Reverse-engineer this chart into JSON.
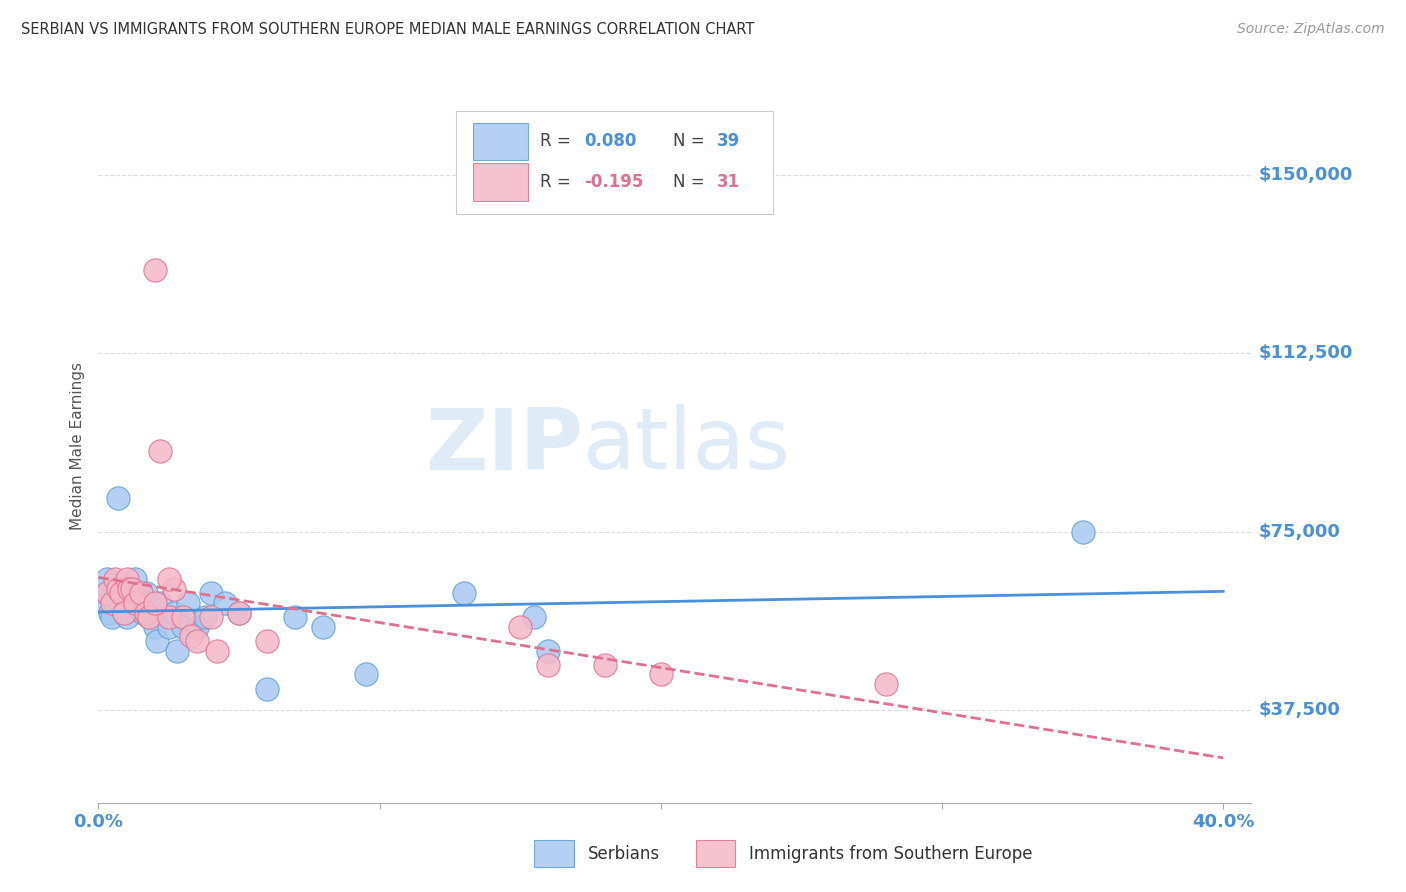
{
  "title": "SERBIAN VS IMMIGRANTS FROM SOUTHERN EUROPE MEDIAN MALE EARNINGS CORRELATION CHART",
  "source": "Source: ZipAtlas.com",
  "ylabel": "Median Male Earnings",
  "watermark_zip": "ZIP",
  "watermark_atlas": "atlas",
  "blue_color": "#a8c8f0",
  "blue_edge_color": "#5a9fd4",
  "pink_color": "#f5b8c8",
  "pink_edge_color": "#e07090",
  "blue_line_color": "#4a90d9",
  "pink_line_color": "#e07090",
  "axis_label_color": "#4a90d9",
  "title_color": "#333333",
  "source_color": "#999999",
  "grid_color": "#dddddd",
  "ylabel_color": "#555555",
  "background_color": "#ffffff",
  "serb_x": [
    0.002,
    0.003,
    0.004,
    0.005,
    0.006,
    0.007,
    0.008,
    0.009,
    0.01,
    0.011,
    0.012,
    0.013,
    0.014,
    0.015,
    0.016,
    0.017,
    0.018,
    0.02,
    0.021,
    0.022,
    0.025,
    0.027,
    0.028,
    0.03,
    0.032,
    0.035,
    0.038,
    0.04,
    0.045,
    0.05,
    0.06,
    0.07,
    0.08,
    0.095,
    0.13,
    0.155,
    0.16,
    0.35,
    0.003
  ],
  "serb_y": [
    60000,
    62000,
    58000,
    57000,
    60000,
    82000,
    60000,
    58000,
    57000,
    62000,
    60000,
    65000,
    62000,
    60000,
    58000,
    62000,
    57000,
    55000,
    52000,
    60000,
    55000,
    58000,
    50000,
    55000,
    60000,
    55000,
    57000,
    62000,
    60000,
    58000,
    42000,
    57000,
    55000,
    45000,
    62000,
    57000,
    50000,
    75000,
    65000
  ],
  "imm_x": [
    0.003,
    0.005,
    0.006,
    0.007,
    0.008,
    0.009,
    0.01,
    0.011,
    0.012,
    0.013,
    0.015,
    0.017,
    0.018,
    0.02,
    0.022,
    0.025,
    0.027,
    0.03,
    0.033,
    0.035,
    0.04,
    0.042,
    0.05,
    0.06,
    0.15,
    0.16,
    0.18,
    0.2,
    0.28,
    0.02,
    0.025
  ],
  "imm_y": [
    62000,
    60000,
    65000,
    63000,
    62000,
    58000,
    65000,
    63000,
    63000,
    60000,
    62000,
    58000,
    57000,
    130000,
    92000,
    57000,
    63000,
    57000,
    53000,
    52000,
    57000,
    50000,
    58000,
    52000,
    55000,
    47000,
    47000,
    45000,
    43000,
    60000,
    65000
  ],
  "xlim": [
    0.0,
    0.41
  ],
  "ylim": [
    18000,
    168000
  ],
  "ytick_vals": [
    37500,
    75000,
    112500,
    150000
  ],
  "ytick_labels": [
    "$37,500",
    "$75,000",
    "$112,500",
    "$150,000"
  ],
  "xtick_vals": [
    0.0,
    0.1,
    0.2,
    0.3,
    0.4
  ],
  "xtick_show": [
    "0.0%",
    "",
    "",
    "",
    "40.0%"
  ]
}
